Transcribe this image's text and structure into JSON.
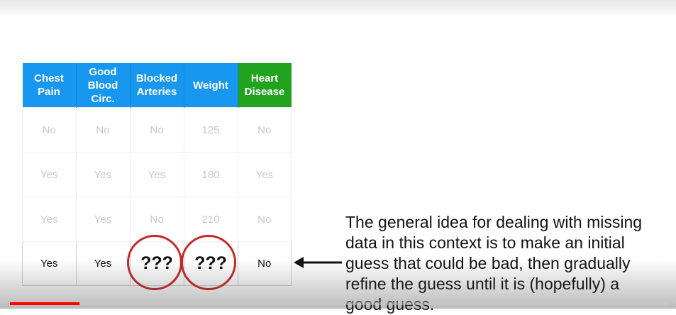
{
  "table": {
    "headers": [
      {
        "text": "Chest\nPain"
      },
      {
        "text": "Good\nBlood\nCirc."
      },
      {
        "text": "Blocked\nArteries"
      },
      {
        "text": "Weight"
      },
      {
        "text": "Heart\nDisease"
      }
    ],
    "rows": [
      [
        "No",
        "No",
        "No",
        "125",
        "No"
      ],
      [
        "Yes",
        "Yes",
        "Yes",
        "180",
        "Yes"
      ],
      [
        "Yes",
        "Yes",
        "No",
        "210",
        "No"
      ],
      [
        "Yes",
        "Yes",
        "???",
        "???",
        "No"
      ]
    ]
  },
  "caption": "The general idea for dealing with missing data in this context is to make an initial guess that could be bad, then gradually refine the guess until it is (hopefully) a good guess.",
  "colors": {
    "header_blue": "#1897f0",
    "target_green": "#22a31f",
    "circle_red": "#c62828",
    "progress_red": "#ff0000"
  },
  "video": {
    "progress": 0.105
  }
}
